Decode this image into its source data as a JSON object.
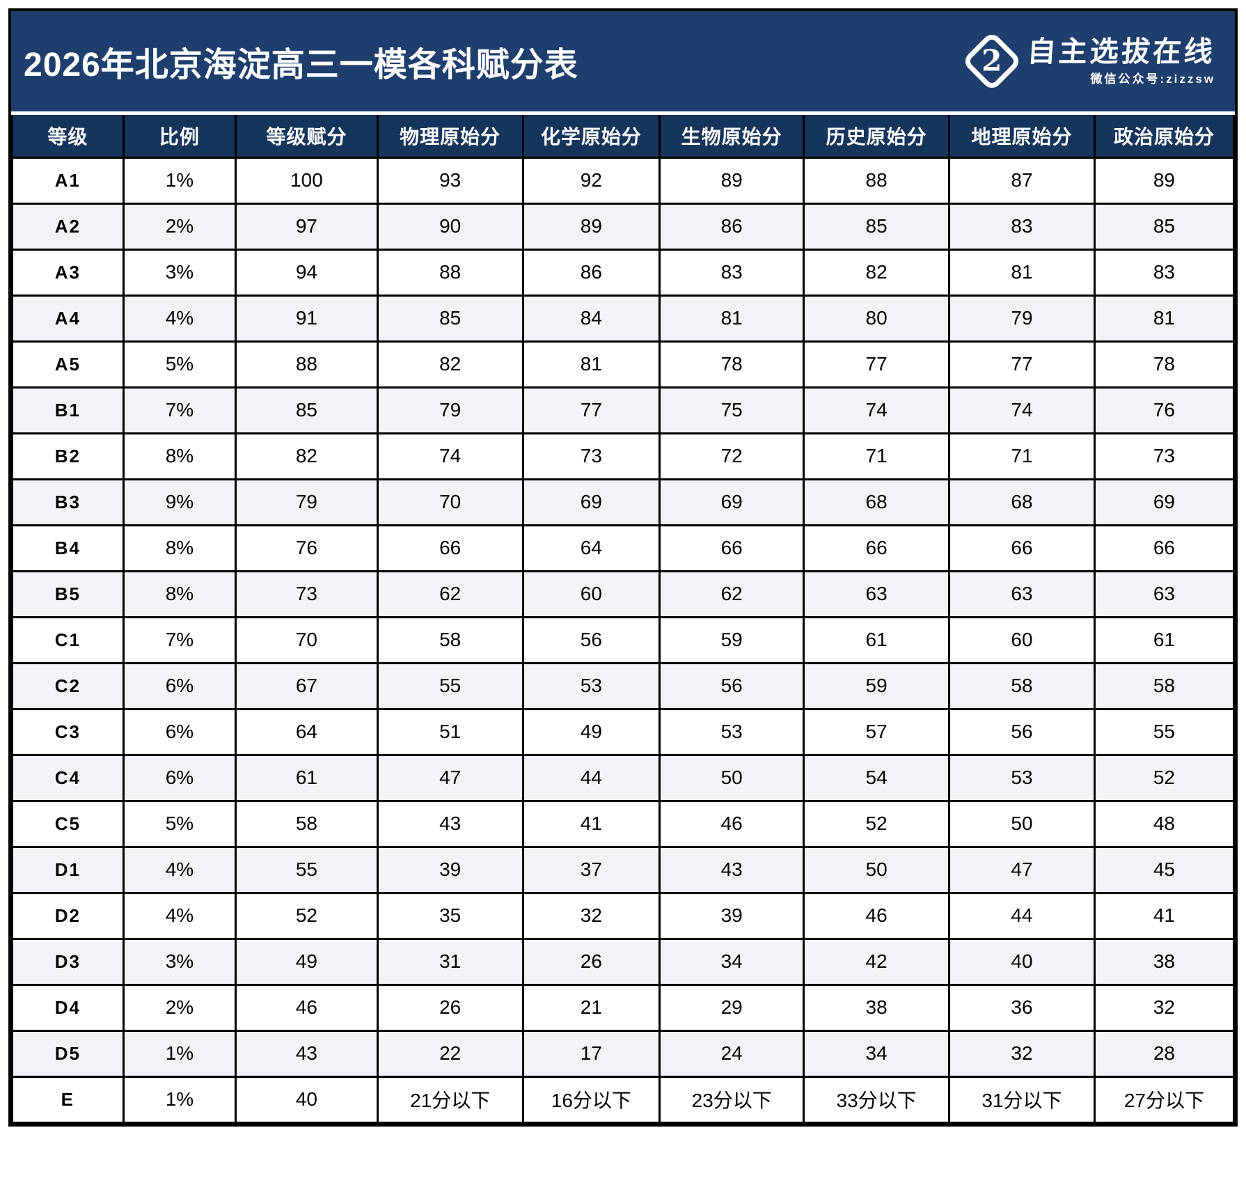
{
  "title": "2026年北京海淀高三一模各科赋分表",
  "logo": {
    "glyph": "2",
    "brand_text": "自主选拔在线",
    "subtitle": "微信公众号:zizzsw"
  },
  "colors": {
    "title_band_bg": "#1e3f6e",
    "header_row_bg": "#15355d",
    "stripe_row_bg": "#f2f3f6",
    "grid_border": "#000000",
    "title_text": "#ffffff"
  },
  "chart_data": {
    "type": "table",
    "title": "2026年北京海淀高三一模各科赋分表",
    "headers": [
      "等级",
      "比例",
      "等级赋分",
      "物理原始分",
      "化学原始分",
      "生物原始分",
      "历史原始分",
      "地理原始分",
      "政治原始分"
    ],
    "rows": [
      [
        "A1",
        "1%",
        "100",
        "93",
        "92",
        "89",
        "88",
        "87",
        "89"
      ],
      [
        "A2",
        "2%",
        "97",
        "90",
        "89",
        "86",
        "85",
        "83",
        "85"
      ],
      [
        "A3",
        "3%",
        "94",
        "88",
        "86",
        "83",
        "82",
        "81",
        "83"
      ],
      [
        "A4",
        "4%",
        "91",
        "85",
        "84",
        "81",
        "80",
        "79",
        "81"
      ],
      [
        "A5",
        "5%",
        "88",
        "82",
        "81",
        "78",
        "77",
        "77",
        "78"
      ],
      [
        "B1",
        "7%",
        "85",
        "79",
        "77",
        "75",
        "74",
        "74",
        "76"
      ],
      [
        "B2",
        "8%",
        "82",
        "74",
        "73",
        "72",
        "71",
        "71",
        "73"
      ],
      [
        "B3",
        "9%",
        "79",
        "70",
        "69",
        "69",
        "68",
        "68",
        "69"
      ],
      [
        "B4",
        "8%",
        "76",
        "66",
        "64",
        "66",
        "66",
        "66",
        "66"
      ],
      [
        "B5",
        "8%",
        "73",
        "62",
        "60",
        "62",
        "63",
        "63",
        "63"
      ],
      [
        "C1",
        "7%",
        "70",
        "58",
        "56",
        "59",
        "61",
        "60",
        "61"
      ],
      [
        "C2",
        "6%",
        "67",
        "55",
        "53",
        "56",
        "59",
        "58",
        "58"
      ],
      [
        "C3",
        "6%",
        "64",
        "51",
        "49",
        "53",
        "57",
        "56",
        "55"
      ],
      [
        "C4",
        "6%",
        "61",
        "47",
        "44",
        "50",
        "54",
        "53",
        "52"
      ],
      [
        "C5",
        "5%",
        "58",
        "43",
        "41",
        "46",
        "52",
        "50",
        "48"
      ],
      [
        "D1",
        "4%",
        "55",
        "39",
        "37",
        "43",
        "50",
        "47",
        "45"
      ],
      [
        "D2",
        "4%",
        "52",
        "35",
        "32",
        "39",
        "46",
        "44",
        "41"
      ],
      [
        "D3",
        "3%",
        "49",
        "31",
        "26",
        "34",
        "42",
        "40",
        "38"
      ],
      [
        "D4",
        "2%",
        "46",
        "26",
        "21",
        "29",
        "38",
        "36",
        "32"
      ],
      [
        "D5",
        "1%",
        "43",
        "22",
        "17",
        "24",
        "34",
        "32",
        "28"
      ],
      [
        "E",
        "1%",
        "40",
        "21分以下",
        "16分以下",
        "23分以下",
        "33分以下",
        "31分以下",
        "27分以下"
      ]
    ]
  }
}
